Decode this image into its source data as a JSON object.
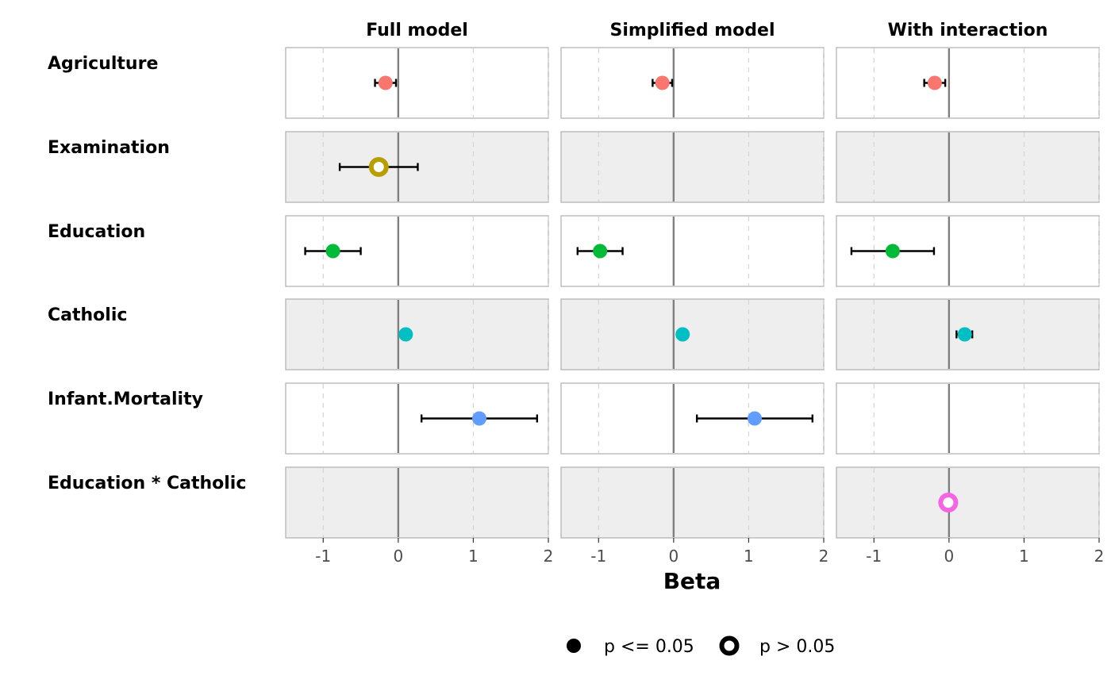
{
  "chart_data": {
    "type": "scatter",
    "xlabel": "Beta",
    "xlim": [
      -1.5,
      2
    ],
    "xticks": [
      -1,
      0,
      1,
      2
    ],
    "xtick_labels": [
      "-1",
      "0",
      "1",
      "2"
    ],
    "models": [
      "Full model",
      "Simplified model",
      "With interaction"
    ],
    "terms": [
      "Agriculture",
      "Examination",
      "Education",
      "Catholic",
      "Infant.Mortality",
      "Education * Catholic"
    ],
    "term_colors": [
      "#F8766D",
      "#B79F00",
      "#00BA38",
      "#00BFC4",
      "#619CFF",
      "#F564E3"
    ],
    "row_shading": [
      "#ffffff",
      "#eeeeee",
      "#ffffff",
      "#eeeeee",
      "#ffffff",
      "#eeeeee"
    ],
    "points": [
      {
        "model": "Full model",
        "term": "Agriculture",
        "estimate": -0.17,
        "ci_low": -0.31,
        "ci_high": -0.03,
        "significant": true
      },
      {
        "model": "Full model",
        "term": "Examination",
        "estimate": -0.26,
        "ci_low": -0.78,
        "ci_high": 0.26,
        "significant": false
      },
      {
        "model": "Full model",
        "term": "Education",
        "estimate": -0.87,
        "ci_low": -1.24,
        "ci_high": -0.5,
        "significant": true
      },
      {
        "model": "Full model",
        "term": "Catholic",
        "estimate": 0.1,
        "ci_low": 0.05,
        "ci_high": 0.15,
        "significant": true
      },
      {
        "model": "Full model",
        "term": "Infant.Mortality",
        "estimate": 1.08,
        "ci_low": 0.31,
        "ci_high": 1.85,
        "significant": true
      },
      {
        "model": "Simplified model",
        "term": "Agriculture",
        "estimate": -0.15,
        "ci_low": -0.28,
        "ci_high": -0.02,
        "significant": true
      },
      {
        "model": "Simplified model",
        "term": "Education",
        "estimate": -0.98,
        "ci_low": -1.28,
        "ci_high": -0.68,
        "significant": true
      },
      {
        "model": "Simplified model",
        "term": "Catholic",
        "estimate": 0.12,
        "ci_low": 0.07,
        "ci_high": 0.17,
        "significant": true
      },
      {
        "model": "Simplified model",
        "term": "Infant.Mortality",
        "estimate": 1.08,
        "ci_low": 0.31,
        "ci_high": 1.85,
        "significant": true
      },
      {
        "model": "With interaction",
        "term": "Agriculture",
        "estimate": -0.19,
        "ci_low": -0.33,
        "ci_high": -0.05,
        "significant": true
      },
      {
        "model": "With interaction",
        "term": "Education",
        "estimate": -0.75,
        "ci_low": -1.3,
        "ci_high": -0.2,
        "significant": true
      },
      {
        "model": "With interaction",
        "term": "Catholic",
        "estimate": 0.21,
        "ci_low": 0.1,
        "ci_high": 0.31,
        "significant": true
      },
      {
        "model": "With interaction",
        "term": "Education * Catholic",
        "estimate": -0.01,
        "ci_low": -0.02,
        "ci_high": 0.0,
        "significant": false
      }
    ],
    "legend": {
      "position": "bottom",
      "items": [
        {
          "label": "p <= 0.05",
          "shape": "filled-circle"
        },
        {
          "label": "p > 0.05",
          "shape": "open-circle"
        }
      ]
    },
    "zero_line": true,
    "grid": "vertical-dashed"
  }
}
